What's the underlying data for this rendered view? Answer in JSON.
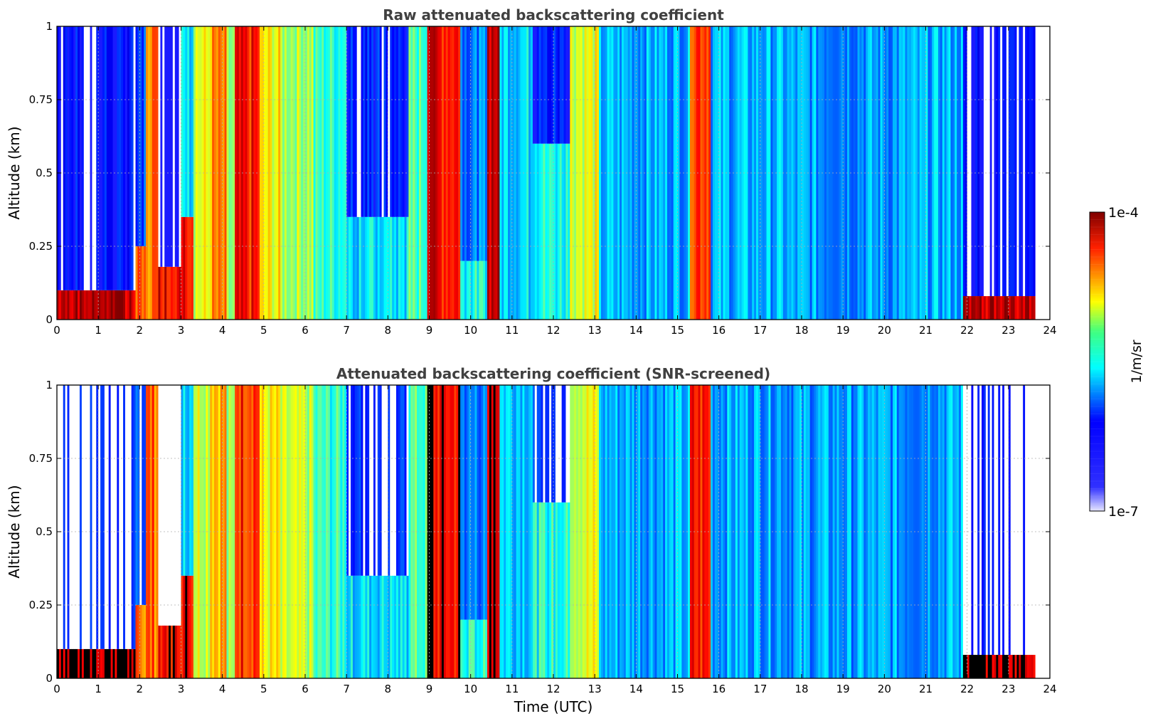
{
  "chart_data": [
    {
      "type": "heatmap",
      "title": "Raw attenuated backscattering coefficient",
      "xlabel": "",
      "ylabel": "Altitude (km)",
      "xlim": [
        0,
        24
      ],
      "ylim": [
        0,
        1
      ],
      "x_ticks": [
        "0",
        "1",
        "2",
        "3",
        "4",
        "5",
        "6",
        "7",
        "8",
        "9",
        "10",
        "11",
        "12",
        "13",
        "14",
        "15",
        "16",
        "17",
        "18",
        "19",
        "20",
        "21",
        "22",
        "23",
        "24"
      ],
      "y_ticks": [
        "0",
        "0.25",
        "0.5",
        "0.75",
        "1"
      ],
      "grid": true,
      "data_end_time": 23.65,
      "colormap": "jet",
      "colorbar": {
        "min_label": "1e-7",
        "max_label": "1e-4",
        "label": "1/m/sr"
      },
      "time_columns": [
        {
          "t0": 0,
          "t1": 1.9,
          "level": 0.95,
          "layer_top": 0.1,
          "above": 0.12
        },
        {
          "t0": 1.9,
          "t1": 2.15,
          "level": 0.75,
          "layer_top": 0.25,
          "above": 0.2
        },
        {
          "t0": 2.15,
          "t1": 2.45,
          "level": 0.78,
          "layer_top": 1,
          "above": 0.78
        },
        {
          "t0": 2.45,
          "t1": 3.0,
          "level": 0.9,
          "layer_top": 0.18,
          "above": 0.05
        },
        {
          "t0": 3.0,
          "t1": 3.3,
          "level": 0.9,
          "layer_top": 0.35,
          "above": 0.35
        },
        {
          "t0": 3.3,
          "t1": 3.7,
          "level": 0.6,
          "layer_top": 1,
          "above": 0.6
        },
        {
          "t0": 3.7,
          "t1": 4.1,
          "level": 0.72,
          "layer_top": 1,
          "above": 0.72
        },
        {
          "t0": 4.1,
          "t1": 4.3,
          "level": 0.5,
          "layer_top": 1,
          "above": 0.5
        },
        {
          "t0": 4.3,
          "t1": 4.9,
          "level": 0.85,
          "layer_top": 1,
          "above": 0.85
        },
        {
          "t0": 4.9,
          "t1": 5.4,
          "level": 0.62,
          "layer_top": 1,
          "above": 0.62
        },
        {
          "t0": 5.4,
          "t1": 6.2,
          "level": 0.55,
          "layer_top": 1,
          "above": 0.55
        },
        {
          "t0": 6.2,
          "t1": 7.0,
          "level": 0.42,
          "layer_top": 1,
          "above": 0.2
        },
        {
          "t0": 7.0,
          "t1": 8.5,
          "level": 0.35,
          "layer_top": 0.35,
          "above": 0.15
        },
        {
          "t0": 8.5,
          "t1": 8.95,
          "level": 0.45,
          "layer_top": 1,
          "above": 0.3
        },
        {
          "t0": 8.95,
          "t1": 9.1,
          "level": 0.98,
          "layer_top": 1,
          "above": 0.98
        },
        {
          "t0": 9.1,
          "t1": 9.75,
          "level": 0.88,
          "layer_top": 1,
          "above": 0.88
        },
        {
          "t0": 9.75,
          "t1": 10.4,
          "level": 0.4,
          "layer_top": 0.2,
          "above": 0.25
        },
        {
          "t0": 10.4,
          "t1": 10.7,
          "level": 0.95,
          "layer_top": 1,
          "above": 0.95
        },
        {
          "t0": 10.7,
          "t1": 11.5,
          "level": 0.35,
          "layer_top": 1,
          "above": 0.15
        },
        {
          "t0": 11.5,
          "t1": 12.4,
          "level": 0.4,
          "layer_top": 0.6,
          "above": 0.15
        },
        {
          "t0": 12.4,
          "t1": 13.1,
          "level": 0.6,
          "layer_top": 1,
          "above": 0.4
        },
        {
          "t0": 13.1,
          "t1": 15.3,
          "level": 0.3,
          "layer_top": 1,
          "above": 0.15
        },
        {
          "t0": 15.3,
          "t1": 15.8,
          "level": 0.85,
          "layer_top": 1,
          "above": 0.85
        },
        {
          "t0": 15.8,
          "t1": 17.6,
          "level": 0.3,
          "layer_top": 1,
          "above": 0.15
        },
        {
          "t0": 17.6,
          "t1": 21.0,
          "level": 0.28,
          "layer_top": 1,
          "above": 0.15
        },
        {
          "t0": 21.0,
          "t1": 21.9,
          "level": 0.3,
          "layer_top": 1,
          "above": 0.15
        },
        {
          "t0": 21.9,
          "t1": 23.65,
          "level": 0.95,
          "layer_top": 0.08,
          "above": 0.1
        }
      ]
    },
    {
      "type": "heatmap",
      "title": "Attenuated backscattering coefficient (SNR-screened)",
      "xlabel": "Time (UTC)",
      "ylabel": "Altitude (km)",
      "xlim": [
        0,
        24
      ],
      "ylim": [
        0,
        1
      ],
      "x_ticks": [
        "0",
        "1",
        "2",
        "3",
        "4",
        "5",
        "6",
        "7",
        "8",
        "9",
        "10",
        "11",
        "12",
        "13",
        "14",
        "15",
        "16",
        "17",
        "18",
        "19",
        "20",
        "21",
        "22",
        "23",
        "24"
      ],
      "y_ticks": [
        "0",
        "0.25",
        "0.5",
        "0.75",
        "1"
      ],
      "grid": true,
      "data_end_time": 23.65,
      "colormap": "jet",
      "screened_fill": "#ffffff",
      "saturated_color": "#000000"
    }
  ]
}
